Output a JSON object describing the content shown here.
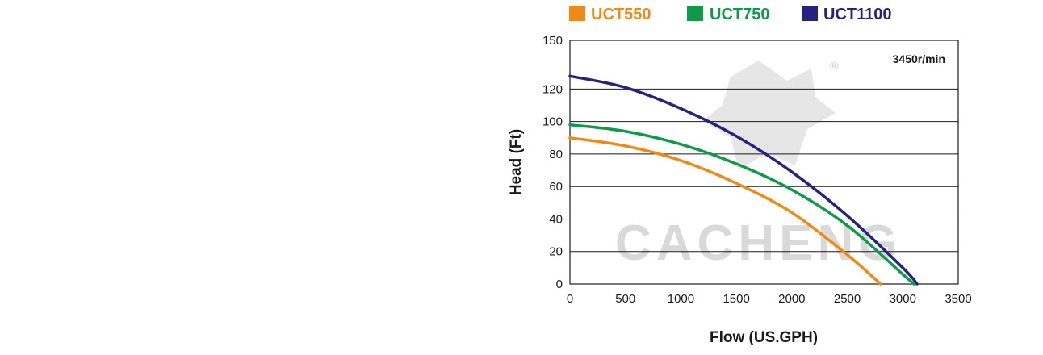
{
  "chart_data": {
    "type": "line",
    "xlabel": "Flow (US.GPH)",
    "ylabel": "Head (Ft)",
    "xlim": [
      0,
      3500
    ],
    "ylim": [
      0,
      150
    ],
    "xticks": [
      0,
      500,
      1000,
      1500,
      2000,
      2500,
      3000,
      3500
    ],
    "yticks": [
      0,
      20,
      40,
      60,
      80,
      100,
      120,
      150
    ],
    "grid": "horizontal",
    "legend_position": "top",
    "annotation": "3450r/min",
    "watermark": "CACHENG",
    "series": [
      {
        "name": "UCT550",
        "color": "#ef8a17",
        "x": [
          0,
          500,
          1000,
          1500,
          2000,
          2500,
          2800
        ],
        "y": [
          90,
          85,
          76,
          62,
          44,
          18,
          0
        ]
      },
      {
        "name": "UCT750",
        "color": "#0e9a48",
        "x": [
          0,
          500,
          1000,
          1500,
          2000,
          2500,
          3000,
          3100
        ],
        "y": [
          98,
          94,
          86,
          74,
          58,
          36,
          6,
          0
        ]
      },
      {
        "name": "UCT1100",
        "color": "#24237e",
        "x": [
          0,
          500,
          1000,
          1500,
          2000,
          2500,
          3000,
          3130
        ],
        "y": [
          128,
          121,
          108,
          91,
          69,
          42,
          10,
          0
        ]
      }
    ]
  }
}
